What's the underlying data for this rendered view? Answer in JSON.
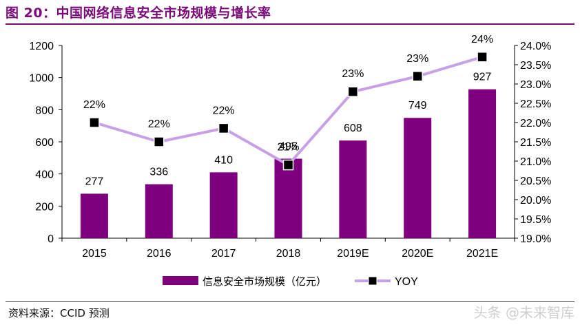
{
  "header": {
    "title": "图 20：中国网络信息安全市场规模与增长率"
  },
  "footer": {
    "source": "资料来源：CCID 预测",
    "watermark": "头条 @未来智库"
  },
  "colors": {
    "bar": "#7e007e",
    "line": "#c8a0e8",
    "marker": "#000000",
    "title": "#7b0a7b"
  },
  "chart_data": {
    "type": "bar",
    "categories": [
      "2015",
      "2016",
      "2017",
      "2018",
      "2019E",
      "2020E",
      "2021E"
    ],
    "series": [
      {
        "name": "信息安全市场规模（亿元）",
        "type": "bar",
        "axis": "left",
        "values": [
          277,
          336,
          410,
          495,
          608,
          749,
          927
        ],
        "labels": [
          "277",
          "336",
          "410",
          "495",
          "608",
          "749",
          "927"
        ]
      },
      {
        "name": "YOY",
        "type": "line",
        "axis": "right",
        "values": [
          22.0,
          21.5,
          21.85,
          20.9,
          22.8,
          23.2,
          23.7
        ],
        "labels": [
          "22%",
          "22%",
          "22%",
          "21%",
          "23%",
          "23%",
          "24%"
        ]
      }
    ],
    "y_left": {
      "min": 0,
      "max": 1200,
      "ticks": [
        "0",
        "200",
        "400",
        "600",
        "800",
        "1000",
        "1200"
      ]
    },
    "y_right": {
      "min": 19.0,
      "max": 24.0,
      "ticks": [
        "19.0%",
        "19.5%",
        "20.0%",
        "20.5%",
        "21.0%",
        "21.5%",
        "22.0%",
        "22.5%",
        "23.0%",
        "23.5%",
        "24.0%"
      ]
    },
    "legend_position": "bottom",
    "grid": false
  }
}
